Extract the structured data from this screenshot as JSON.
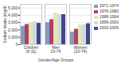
{
  "chart_data": {
    "type": "bar",
    "categories": [
      "Children\n(6-11)",
      "Men\n20-74",
      "Women\n(20-74)"
    ],
    "series": [
      {
        "name": "1971-1974",
        "color": "#8899bb",
        "values": [
          2500,
          3000,
          1700
        ]
      },
      {
        "name": "1976-1980",
        "color": "#aa4466",
        "values": [
          2750,
          3400,
          2100
        ]
      },
      {
        "name": "1988-1994",
        "color": "#e8e4b0",
        "values": [
          3000,
          4300,
          2700
        ]
      },
      {
        "name": "1999-2000",
        "color": "#c8dce8",
        "values": [
          3100,
          4100,
          2700
        ]
      },
      {
        "name": "2003-2006",
        "color": "#444488",
        "values": [
          2900,
          4100,
          2850
        ]
      }
    ],
    "ylabel": "Sodium Intake (mg/d)",
    "xlabel": "Gender/Age Groups",
    "ylim": [
      0,
      5500
    ],
    "yticks": [
      0,
      {
        "value": 1000,
        "label": "1,000"
      },
      {
        "value": 2000,
        "label": "2,000"
      },
      {
        "value": 3000,
        "label": "3,000"
      },
      {
        "value": 4000,
        "label": "4,000"
      },
      {
        "value": 5000,
        "label": "5,000"
      }
    ],
    "grid": true,
    "legend": "right"
  }
}
